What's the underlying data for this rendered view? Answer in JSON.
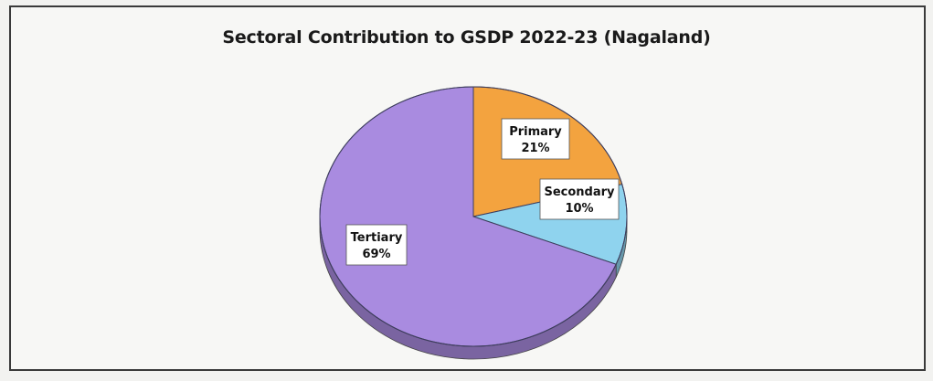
{
  "chart_data": {
    "type": "pie",
    "title": "Sectoral Contribution to GSDP 2022-23 (Nagaland)",
    "slices": [
      {
        "name": "Primary",
        "value": 21,
        "label": "21%",
        "color": "#f3a33f"
      },
      {
        "name": "Secondary",
        "value": 10,
        "label": "10%",
        "color": "#8fd3ee"
      },
      {
        "name": "Tertiary",
        "value": 69,
        "label": "69%",
        "color": "#a98be0"
      }
    ],
    "style": "3d-tilted-pie",
    "legend": "none"
  }
}
